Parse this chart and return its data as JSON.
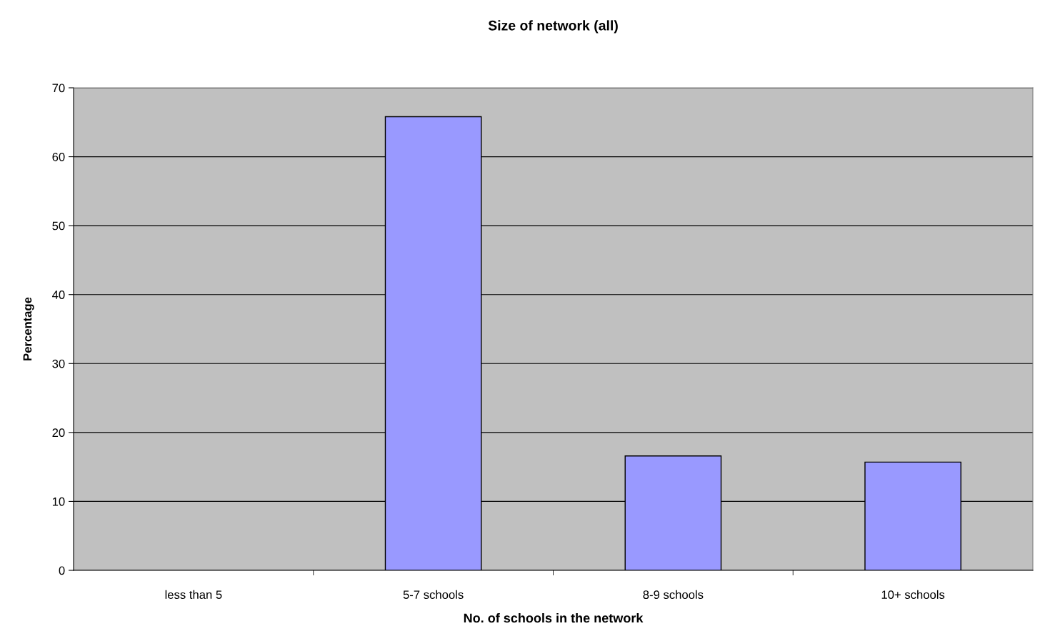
{
  "chart_data": {
    "type": "bar",
    "title": "Size of network (all)",
    "xlabel": "No. of schools in the network",
    "ylabel": "Percentage",
    "categories": [
      "less than 5",
      "5-7 schools",
      "8-9 schools",
      "10+ schools"
    ],
    "values": [
      0,
      65.8,
      16.6,
      15.7
    ],
    "color": "#9999ff",
    "ylim": [
      0,
      70
    ],
    "yticks": [
      0,
      10,
      20,
      30,
      40,
      50,
      60,
      70
    ],
    "grid": "y",
    "legend": false
  }
}
